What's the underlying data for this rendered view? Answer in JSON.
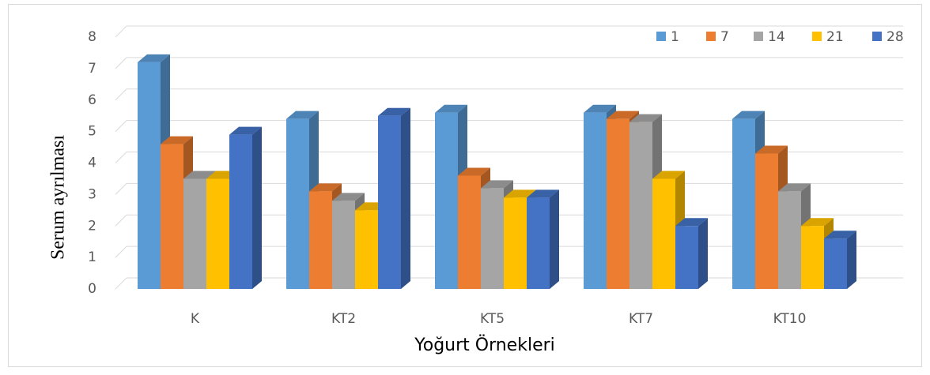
{
  "chart_data": {
    "type": "bar3d",
    "x_label": "Yoğurt Örnekleri",
    "y_label": "Serum ayrılması",
    "categories": [
      "K",
      "KT2",
      "KT5",
      "KT7",
      "KT10"
    ],
    "series": [
      {
        "name": "1",
        "color": "#5b9bd5",
        "values": [
          7.2,
          5.4,
          5.6,
          5.6,
          5.4
        ]
      },
      {
        "name": "7",
        "color": "#ed7d31",
        "values": [
          4.6,
          3.1,
          3.6,
          5.4,
          4.3
        ]
      },
      {
        "name": "14",
        "color": "#a5a5a5",
        "values": [
          3.5,
          2.8,
          3.2,
          5.3,
          3.1
        ]
      },
      {
        "name": "21",
        "color": "#ffc000",
        "values": [
          3.5,
          2.5,
          2.9,
          3.5,
          2.0
        ]
      },
      {
        "name": "28",
        "color": "#4472c4",
        "values": [
          4.9,
          5.5,
          2.9,
          2.0,
          1.6
        ]
      }
    ],
    "ylim": [
      0,
      8
    ],
    "yticks": [
      0,
      1,
      2,
      3,
      4,
      5,
      6,
      7,
      8
    ],
    "grid": true,
    "legend": "top-right"
  }
}
